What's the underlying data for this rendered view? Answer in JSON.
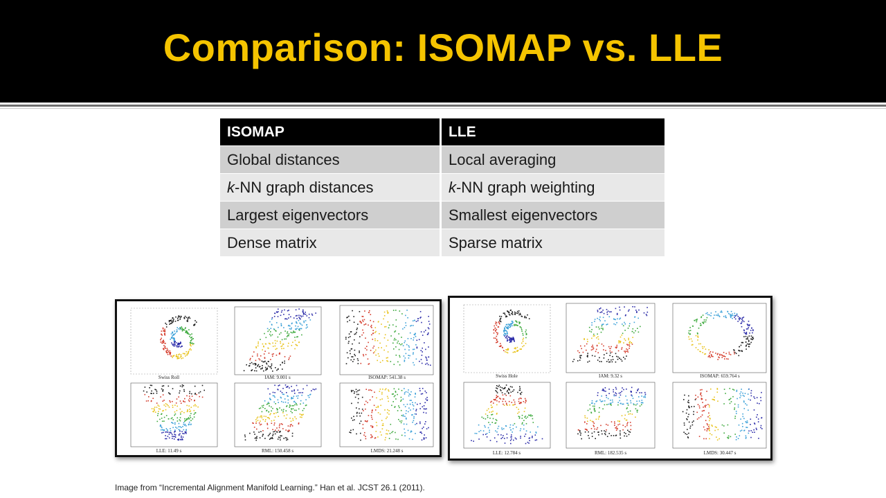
{
  "slide": {
    "title": "Comparison:  ISOMAP vs. LLE",
    "credit": "Image from “Incremental Alignment Manifold Learning.”  Han et al.  JCST 26.1 (2011)."
  },
  "table": {
    "headers": [
      "ISOMAP",
      "LLE"
    ],
    "rows": [
      {
        "isomap_prefix": "",
        "isomap": "Global distances",
        "lle_prefix": "",
        "lle": "Local averaging"
      },
      {
        "isomap_prefix": "k",
        "isomap": "-NN graph distances",
        "lle_prefix": "k",
        "lle": "-NN graph weighting"
      },
      {
        "isomap_prefix": "",
        "isomap": "Largest eigenvectors",
        "lle_prefix": "",
        "lle": "Smallest eigenvectors"
      },
      {
        "isomap_prefix": "",
        "isomap": "Dense matrix",
        "lle_prefix": "",
        "lle": "Sparse matrix"
      }
    ]
  },
  "figures": {
    "left": {
      "captions": [
        "Swiss Roll",
        "IAM: 9.001 s",
        "ISOMAP: 541.38 s",
        "LLE: 11.49 s",
        "RML: 150.458 s",
        "LMDS: 21.248 s"
      ]
    },
    "right": {
      "captions": [
        "Swiss Hole",
        "IAM: 9.32 s",
        "ISOMAP: 659.764 s",
        "LLE: 12.784 s",
        "RML: 182.535 s",
        "LMDS: 30.447 s"
      ]
    },
    "colors": [
      "#1a1a1a",
      "#d43a2a",
      "#e8c21a",
      "#3aa83a",
      "#3aa0d8",
      "#2a2aa8"
    ]
  }
}
